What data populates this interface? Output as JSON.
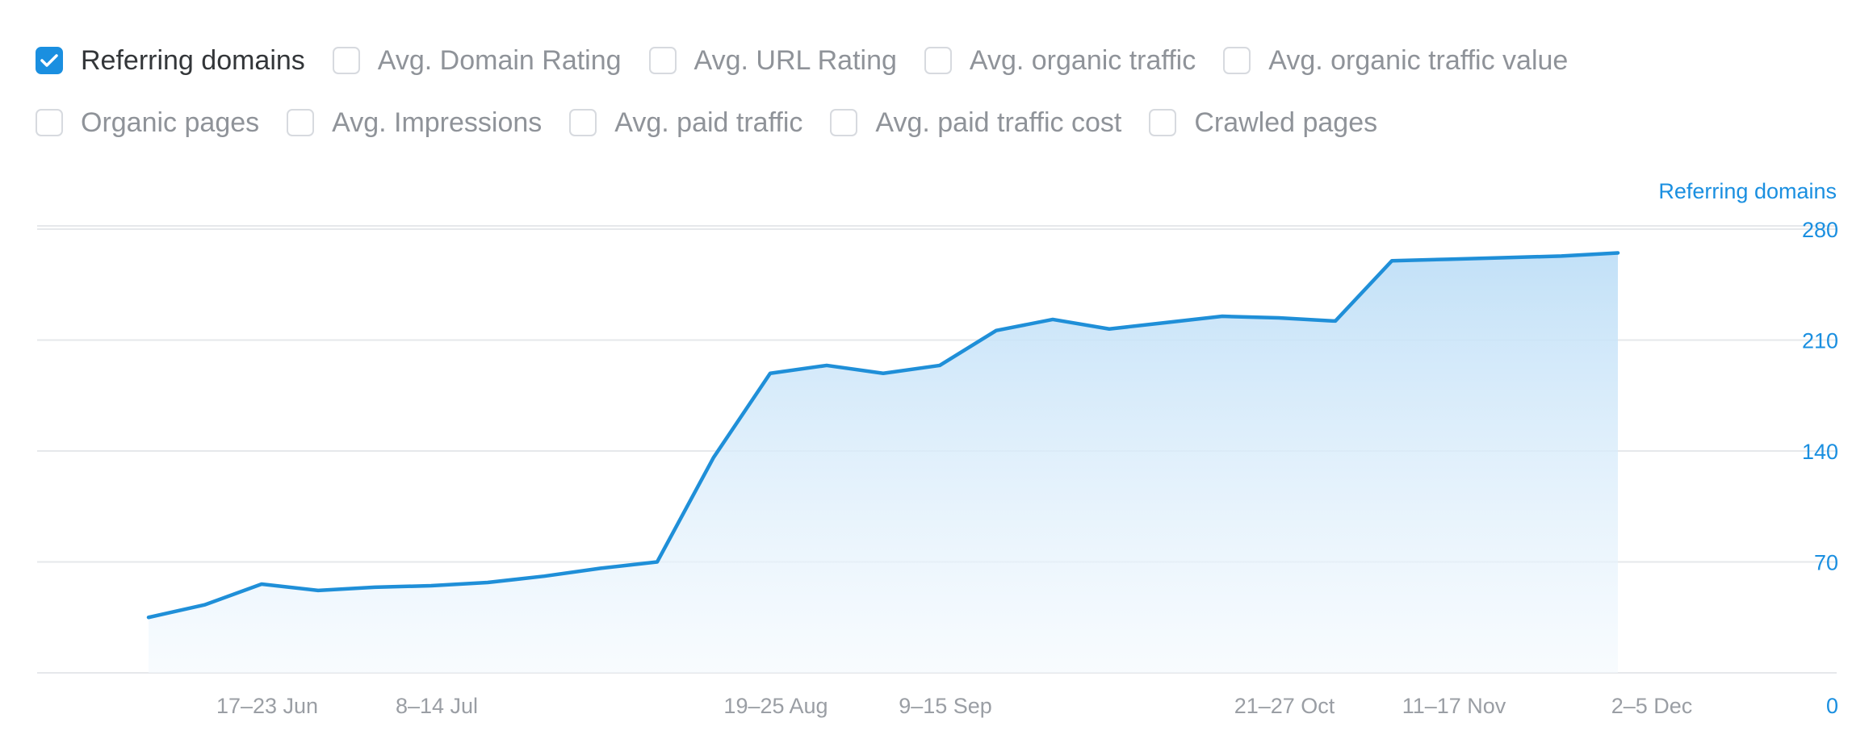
{
  "metrics": {
    "row1": [
      {
        "label": "Referring domains",
        "checked": true
      },
      {
        "label": "Avg. Domain Rating",
        "checked": false
      },
      {
        "label": "Avg. URL Rating",
        "checked": false
      },
      {
        "label": "Avg. organic traffic",
        "checked": false
      },
      {
        "label": "Avg. organic traffic value",
        "checked": false
      }
    ],
    "row2": [
      {
        "label": "Organic pages",
        "checked": false
      },
      {
        "label": "Avg. Impressions",
        "checked": false
      },
      {
        "label": "Avg. paid traffic",
        "checked": false
      },
      {
        "label": "Avg. paid traffic cost",
        "checked": false
      },
      {
        "label": "Crawled pages",
        "checked": false
      }
    ]
  },
  "colors": {
    "accent": "#1a8fe0",
    "line": "#1f8fd8",
    "area_top": "#bfdff7",
    "area_bottom": "#f3f9fe",
    "grid": "#e6e8eb",
    "tick": "#9a9ea4",
    "axis_text": "#1a8fe0"
  },
  "chart_data": {
    "type": "area",
    "title": "",
    "xlabel": "",
    "ylabel": "Referring domains",
    "y_axis_side": "right",
    "ylim": [
      0,
      280
    ],
    "yticks": [
      0,
      70,
      140,
      210,
      280
    ],
    "grid": true,
    "x_ticks": [
      "17–23 Jun",
      "8–14 Jul",
      "19–25 Aug",
      "9–15 Sep",
      "21–27 Oct",
      "11–17 Nov",
      "2–5 Dec"
    ],
    "x_tick_weeks": [
      1,
      4,
      10,
      13,
      19,
      22,
      25.5
    ],
    "series": [
      {
        "name": "Referring domains",
        "x": [
          0,
          1,
          2,
          3,
          4,
          5,
          6,
          7,
          8,
          9,
          10,
          11,
          12,
          13,
          14,
          15,
          16,
          17,
          18,
          19,
          20,
          21,
          22,
          23,
          24,
          25,
          26
        ],
        "values": [
          35,
          43,
          56,
          52,
          54,
          55,
          57,
          61,
          66,
          70,
          136,
          189,
          194,
          189,
          194,
          216,
          223,
          217,
          221,
          225,
          224,
          222,
          260,
          261,
          262,
          263,
          265
        ]
      }
    ]
  }
}
